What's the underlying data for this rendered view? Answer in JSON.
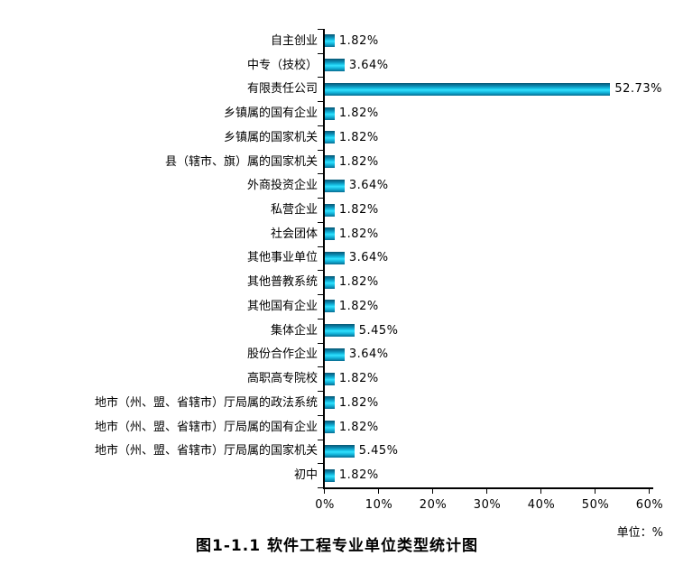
{
  "chart_data": {
    "type": "bar",
    "orientation": "horizontal",
    "title": "图1-1.1 软件工程专业单位类型统计图",
    "unit_label": "单位：%",
    "xlabel": "",
    "ylabel": "",
    "xlim": [
      0,
      60
    ],
    "x_tick_labels": [
      "0%",
      "10%",
      "20%",
      "30%",
      "40%",
      "50%",
      "60%"
    ],
    "grid": false,
    "legend": false,
    "bar_color_center": "#32e2ff",
    "bar_color_edge": "#075673",
    "categories": [
      "自主创业",
      "中专（技校）",
      "有限责任公司",
      "乡镇属的国有企业",
      "乡镇属的国家机关",
      "县（辖市、旗）属的国家机关",
      "外商投资企业",
      "私营企业",
      "社会团体",
      "其他事业单位",
      "其他普教系统",
      "其他国有企业",
      "集体企业",
      "股份合作企业",
      "高职高专院校",
      "地市（州、盟、省辖市）厅局属的政法系统",
      "地市（州、盟、省辖市）厅局属的国有企业",
      "地市（州、盟、省辖市）厅局属的国家机关",
      "初中"
    ],
    "values": [
      1.82,
      3.64,
      52.73,
      1.82,
      1.82,
      1.82,
      3.64,
      1.82,
      1.82,
      3.64,
      1.82,
      1.82,
      5.45,
      3.64,
      1.82,
      1.82,
      1.82,
      5.45,
      1.82
    ],
    "value_labels": [
      "1.82%",
      "3.64%",
      "52.73%",
      "1.82%",
      "1.82%",
      "1.82%",
      "3.64%",
      "1.82%",
      "1.82%",
      "3.64%",
      "1.82%",
      "1.82%",
      "5.45%",
      "3.64%",
      "1.82%",
      "1.82%",
      "1.82%",
      "5.45%",
      "1.82%"
    ]
  }
}
